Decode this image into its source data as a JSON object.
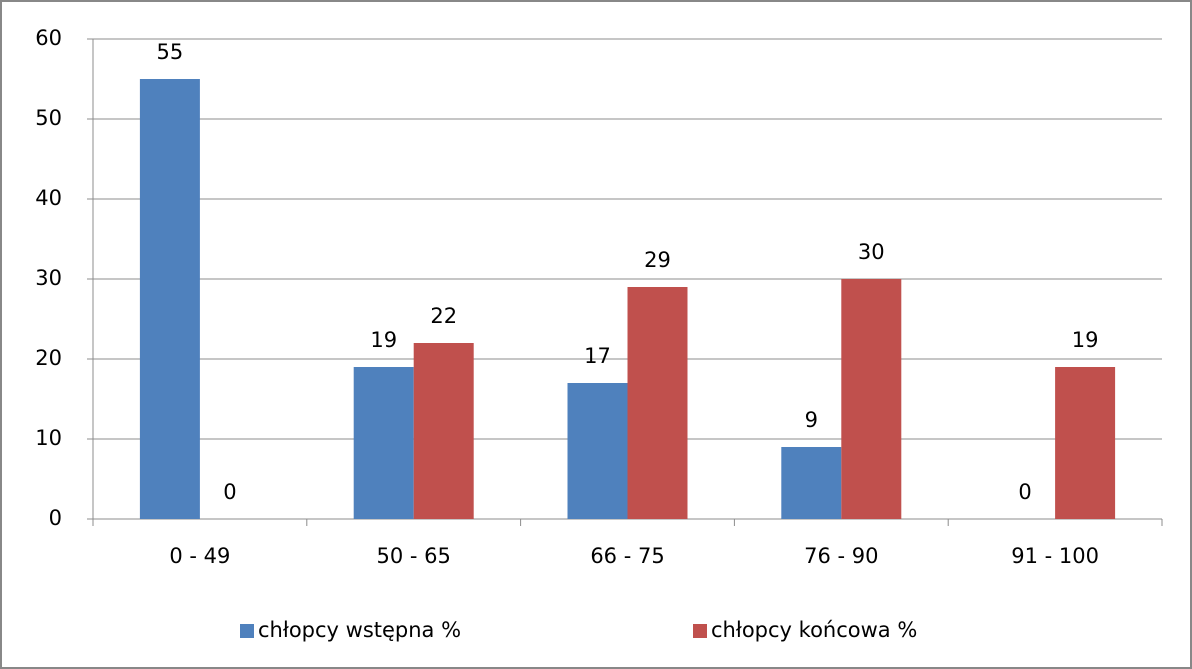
{
  "chart_data": {
    "type": "bar",
    "categories": [
      "0 - 49",
      "50 - 65",
      "66 - 75",
      "76 - 90",
      "91 - 100"
    ],
    "series": [
      {
        "name": "chłopcy wstępna %",
        "color": "#4f81bd",
        "values": [
          55,
          19,
          17,
          9,
          0
        ]
      },
      {
        "name": "chłopcy końcowa %",
        "color": "#c0504d",
        "values": [
          0,
          22,
          29,
          30,
          19
        ]
      }
    ],
    "ylim": [
      0,
      60
    ],
    "yticks": [
      0,
      10,
      20,
      30,
      40,
      50,
      60
    ],
    "grid": true,
    "legend": "bottom"
  }
}
